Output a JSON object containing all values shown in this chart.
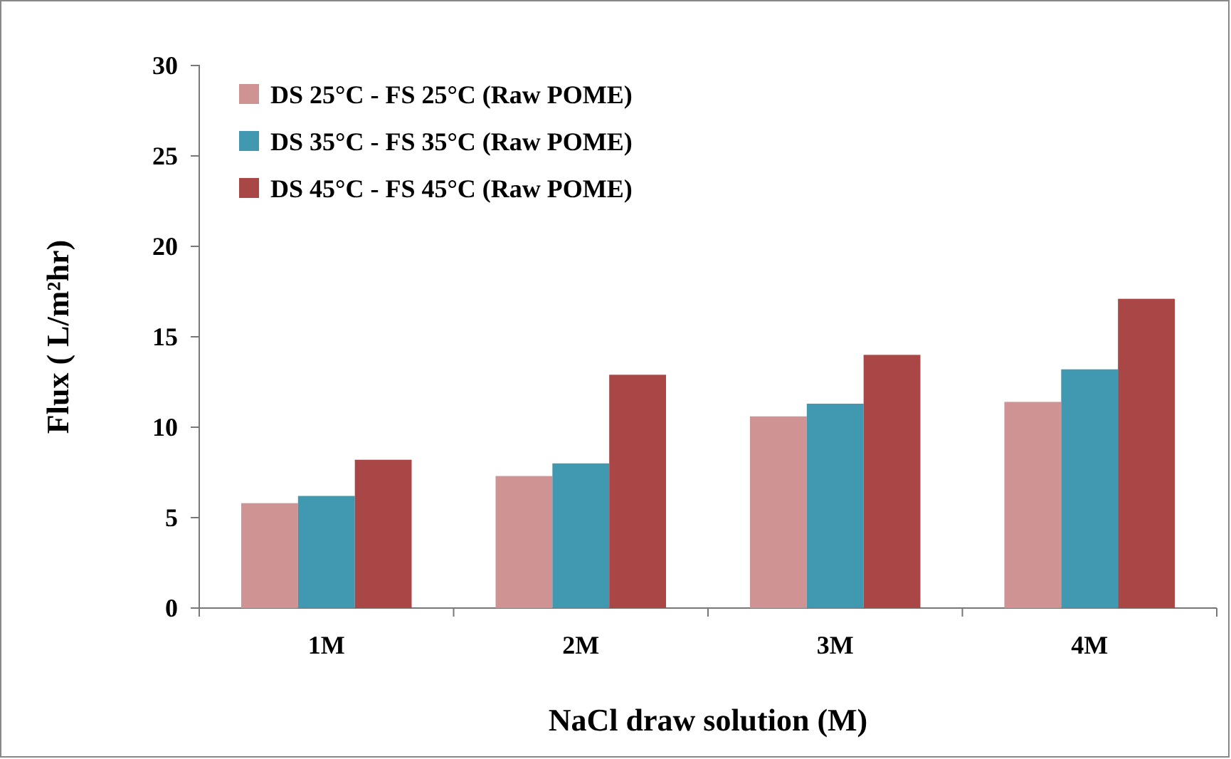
{
  "chart_data": {
    "type": "bar",
    "xlabel": "NaCl draw solution (M)",
    "ylabel": "Flux ( L/m²hr)",
    "categories": [
      "1M",
      "2M",
      "3M",
      "4M"
    ],
    "series": [
      {
        "name": "DS 25°C - FS 25°C (Raw POME)",
        "color": "#d09393",
        "values": [
          5.8,
          7.3,
          10.6,
          11.4
        ]
      },
      {
        "name": "DS 35°C - FS 35°C (Raw POME)",
        "color": "#4199b1",
        "values": [
          6.2,
          8.0,
          11.3,
          13.2
        ]
      },
      {
        "name": "DS 45°C - FS 45°C (Raw POME)",
        "color": "#a94646",
        "values": [
          8.2,
          12.9,
          14.0,
          17.1
        ]
      }
    ],
    "ylim": [
      0,
      30
    ],
    "yticks": [
      0,
      5,
      10,
      15,
      20,
      25,
      30
    ],
    "grid": false,
    "legend": "top left"
  }
}
